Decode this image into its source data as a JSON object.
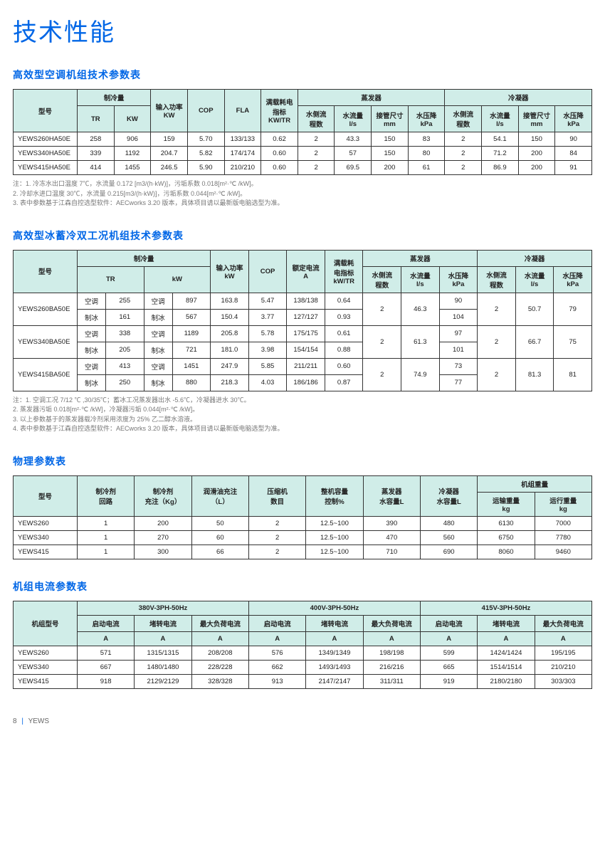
{
  "page_title": "技术性能",
  "footer": {
    "page": "8",
    "product": "YEWS"
  },
  "section1": {
    "title": "高效型空调机组技术参数表",
    "headers": {
      "model": "型号",
      "cooling": "制冷量",
      "tr": "TR",
      "kw": "KW",
      "input_kw": "输入功率\nKW",
      "cop": "COP",
      "fla": "FLA",
      "full_load": "满载耗电\n指标\nKW/TR",
      "evap": "蒸发器",
      "cond": "冷凝器",
      "pass": "水侧流\n程数",
      "flow": "水流量\nl/s",
      "pipe": "接管尺寸\nmm",
      "drop": "水压降\nkPa"
    },
    "rows": [
      {
        "model": "YEWS260HA50E",
        "tr": "258",
        "kw": "906",
        "input": "159",
        "cop": "5.70",
        "fla": "133/133",
        "full": "0.62",
        "ep": "2",
        "ef": "43.3",
        "epi": "150",
        "ed": "83",
        "cp": "2",
        "cf": "54.1",
        "cpi": "150",
        "cd": "90"
      },
      {
        "model": "YEWS340HA50E",
        "tr": "339",
        "kw": "1192",
        "input": "204.7",
        "cop": "5.82",
        "fla": "174/174",
        "full": "0.60",
        "ep": "2",
        "ef": "57",
        "epi": "150",
        "ed": "80",
        "cp": "2",
        "cf": "71.2",
        "cpi": "200",
        "cd": "84"
      },
      {
        "model": "YEWS415HA50E",
        "tr": "414",
        "kw": "1455",
        "input": "246.5",
        "cop": "5.90",
        "fla": "210/210",
        "full": "0.60",
        "ep": "2",
        "ef": "69.5",
        "epi": "200",
        "ed": "61",
        "cp": "2",
        "cf": "86.9",
        "cpi": "200",
        "cd": "91"
      }
    ],
    "notes": [
      "注：1. 冷冻水出口温度 7℃，水流量 0.172 [m3/(h·kW)]，污垢系数 0.018[m²·℃ /kW]。",
      "2. 冷却水进口温度 30℃，水流量 0.215[m3/(h·kW)]，污垢系数 0.044[m²·℃ /kW]。",
      "3. 表中参数基于江森自控选型软件：AECworks 3.20 版本，具体项目请以最新版电脑选型为准。"
    ]
  },
  "section2": {
    "title": "高效型冰蓄冷双工况机组技术参数表",
    "headers": {
      "model": "型号",
      "cooling": "制冷量",
      "tr": "TR",
      "kw": "kW",
      "input_kw": "输入功率\nkW",
      "cop": "COP",
      "rated": "额定电流\nA",
      "full": "满载耗\n电指标\nkW/TR",
      "evap": "蒸发器",
      "cond": "冷凝器",
      "pass": "水侧流\n程数",
      "flow": "水流量\nl/s",
      "drop": "水压降\nkPa",
      "ac": "空调",
      "ice": "制冰"
    },
    "groups": [
      {
        "model": "YEWS260BA50E",
        "rows": [
          {
            "mode": "空调",
            "tr": "255",
            "mode2": "空调",
            "kw": "897",
            "input": "163.8",
            "cop": "5.47",
            "ra": "138/138",
            "full": "0.64",
            "ed": "90"
          },
          {
            "mode": "制冰",
            "tr": "161",
            "mode2": "制冰",
            "kw": "567",
            "input": "150.4",
            "cop": "3.77",
            "ra": "127/127",
            "full": "0.93",
            "ed": "104"
          }
        ],
        "ep": "2",
        "ef": "46.3",
        "cp": "2",
        "cf": "50.7",
        "cd": "79"
      },
      {
        "model": "YEWS340BA50E",
        "rows": [
          {
            "mode": "空调",
            "tr": "338",
            "mode2": "空调",
            "kw": "1189",
            "input": "205.8",
            "cop": "5.78",
            "ra": "175/175",
            "full": "0.61",
            "ed": "97"
          },
          {
            "mode": "制冰",
            "tr": "205",
            "mode2": "制冰",
            "kw": "721",
            "input": "181.0",
            "cop": "3.98",
            "ra": "154/154",
            "full": "0.88",
            "ed": "101"
          }
        ],
        "ep": "2",
        "ef": "61.3",
        "cp": "2",
        "cf": "66.7",
        "cd": "75"
      },
      {
        "model": "YEWS415BA50E",
        "rows": [
          {
            "mode": "空调",
            "tr": "413",
            "mode2": "空调",
            "kw": "1451",
            "input": "247.9",
            "cop": "5.85",
            "ra": "211/211",
            "full": "0.60",
            "ed": "73"
          },
          {
            "mode": "制冰",
            "tr": "250",
            "mode2": "制冰",
            "kw": "880",
            "input": "218.3",
            "cop": "4.03",
            "ra": "186/186",
            "full": "0.87",
            "ed": "77"
          }
        ],
        "ep": "2",
        "ef": "74.9",
        "cp": "2",
        "cf": "81.3",
        "cd": "81"
      }
    ],
    "notes": [
      "注：1. 空调工况 7/12 ℃ ,30/35℃；蓄冰工况蒸发器出水 -5.6℃，冷凝器进水 30℃。",
      "2. 蒸发器污垢 0.018[m²·℃ /kW]，冷凝器污垢 0.044[m²·℃ /kW]。",
      "3. 以上参数基于的蒸发器载冷剂采用浓度为 25% 乙二醇水溶液。",
      "4. 表中参数基于江森自控选型软件：AECworks 3.20 版本，具体项目请以最新版电脑选型为准。"
    ]
  },
  "section3": {
    "title": "物理参数表",
    "headers": {
      "model": "型号",
      "circ": "制冷剂\n回路",
      "charge": "制冷剂\n充注（Kg）",
      "oil": "润滑油充注\n（L）",
      "comp": "压缩机\n数目",
      "cap": "整机容量\n控制%",
      "evap_vol": "蒸发器\n水容量L",
      "cond_vol": "冷凝器\n水容量L",
      "weight": "机组重量",
      "ship": "运输重量\nkg",
      "oper": "运行重量\nkg"
    },
    "rows": [
      {
        "model": "YEWS260",
        "circ": "1",
        "charge": "200",
        "oil": "50",
        "comp": "2",
        "cap": "12.5~100",
        "ev": "390",
        "cv": "480",
        "ship": "6130",
        "oper": "7000"
      },
      {
        "model": "YEWS340",
        "circ": "1",
        "charge": "270",
        "oil": "60",
        "comp": "2",
        "cap": "12.5~100",
        "ev": "470",
        "cv": "560",
        "ship": "6750",
        "oper": "7780"
      },
      {
        "model": "YEWS415",
        "circ": "1",
        "charge": "300",
        "oil": "66",
        "comp": "2",
        "cap": "12.5~100",
        "ev": "710",
        "cv": "690",
        "ship": "8060",
        "oper": "9460"
      }
    ]
  },
  "section4": {
    "title": "机组电流参数表",
    "headers": {
      "model": "机组型号",
      "v1": "380V-3PH-50Hz",
      "v2": "400V-3PH-50Hz",
      "v3": "415V-3PH-50Hz",
      "start": "启动电流",
      "lock": "堵转电流",
      "max": "最大负荷电流",
      "a": "A"
    },
    "rows": [
      {
        "model": "YEWS260",
        "s1": "571",
        "l1": "1315/1315",
        "m1": "208/208",
        "s2": "576",
        "l2": "1349/1349",
        "m2": "198/198",
        "s3": "599",
        "l3": "1424/1424",
        "m3": "195/195"
      },
      {
        "model": "YEWS340",
        "s1": "667",
        "l1": "1480/1480",
        "m1": "228/228",
        "s2": "662",
        "l2": "1493/1493",
        "m2": "216/216",
        "s3": "665",
        "l3": "1514/1514",
        "m3": "210/210"
      },
      {
        "model": "YEWS415",
        "s1": "918",
        "l1": "2129/2129",
        "m1": "328/328",
        "s2": "913",
        "l2": "2147/2147",
        "m2": "311/311",
        "s3": "919",
        "l3": "2180/2180",
        "m3": "303/303"
      }
    ]
  }
}
